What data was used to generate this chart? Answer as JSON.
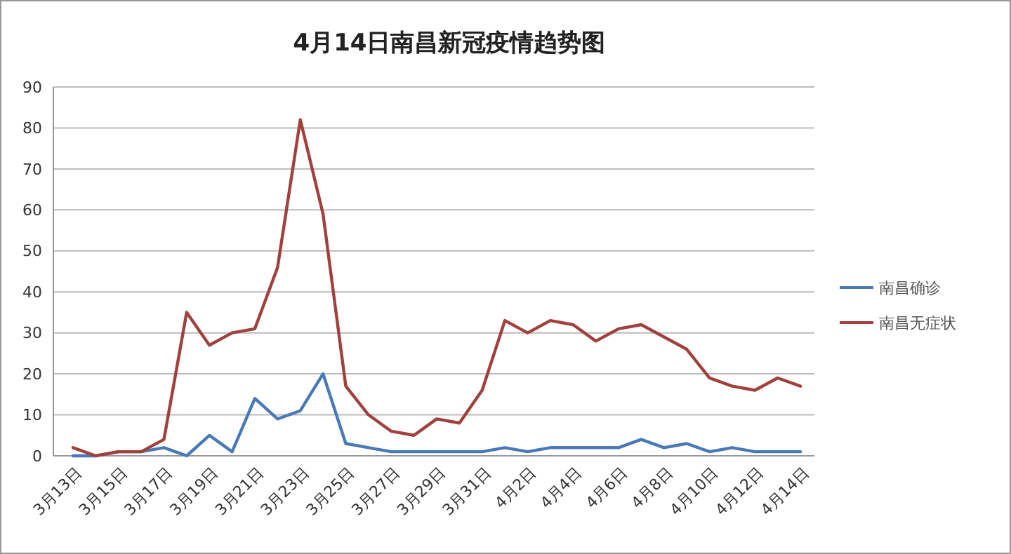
{
  "chart_data": {
    "type": "line",
    "title": "4月14日南昌新冠疫情趋势图",
    "categories": [
      "3月13日",
      null,
      "3月15日",
      null,
      "3月17日",
      null,
      "3月19日",
      null,
      "3月21日",
      null,
      "3月23日",
      null,
      "3月25日",
      null,
      "3月27日",
      null,
      "3月29日",
      null,
      "3月31日",
      null,
      "4月2日",
      null,
      "4月4日",
      null,
      "4月6日",
      null,
      "4月8日",
      null,
      "4月10日",
      null,
      "4月12日",
      null,
      "4月14日"
    ],
    "series": [
      {
        "name": "南昌确诊",
        "color": "#4a7ab5",
        "values": [
          0,
          0,
          1,
          1,
          2,
          0,
          5,
          1,
          14,
          9,
          11,
          20,
          3,
          2,
          1,
          1,
          1,
          1,
          1,
          2,
          1,
          2,
          2,
          2,
          2,
          4,
          2,
          3,
          1,
          2,
          1,
          1,
          1
        ]
      },
      {
        "name": "南昌无症状",
        "color": "#a0413d",
        "values": [
          2,
          0,
          1,
          1,
          4,
          35,
          27,
          30,
          31,
          46,
          82,
          59,
          17,
          10,
          6,
          5,
          9,
          8,
          16,
          33,
          30,
          33,
          32,
          28,
          31,
          32,
          29,
          26,
          19,
          17,
          16,
          19,
          17
        ]
      }
    ],
    "ylim": [
      0,
      90
    ],
    "yticks": [
      0,
      10,
      20,
      30,
      40,
      50,
      60,
      70,
      80,
      90
    ],
    "grid": "y",
    "legend": "right",
    "marker": "none",
    "line_style": "solid"
  }
}
